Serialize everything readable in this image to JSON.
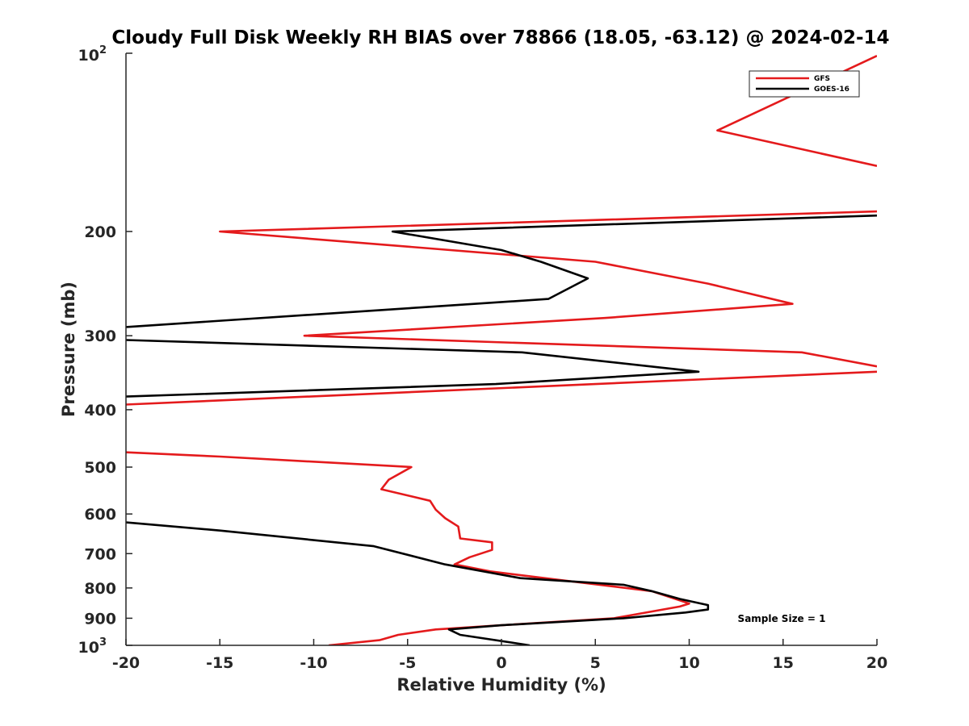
{
  "chart_data": {
    "type": "line",
    "title": "Cloudy Full Disk Weekly RH BIAS over 78866 (18.05, -63.12) @ 2024-02-14",
    "xlabel": "Relative Humidity (%)",
    "ylabel": "Pressure (mb)",
    "xlim": [
      -20,
      20
    ],
    "ylim": [
      100,
      1000
    ],
    "yscale": "log",
    "y_reversed": true,
    "grid": false,
    "x_ticks": [
      -20,
      -15,
      -10,
      -5,
      0,
      5,
      10,
      15,
      20
    ],
    "x_tick_labels": [
      "-20",
      "-15",
      "-10",
      "-5",
      "0",
      "5",
      "10",
      "15",
      "20"
    ],
    "y_ticks": [
      {
        "value": 100,
        "base": "10",
        "exp": "2"
      },
      {
        "value": 200,
        "label": "200"
      },
      {
        "value": 300,
        "label": "300"
      },
      {
        "value": 400,
        "label": "400"
      },
      {
        "value": 500,
        "label": "500"
      },
      {
        "value": 600,
        "label": "600"
      },
      {
        "value": 700,
        "label": "700"
      },
      {
        "value": 800,
        "label": "800"
      },
      {
        "value": 900,
        "label": "900"
      },
      {
        "value": 1000,
        "base": "10",
        "exp": "3"
      }
    ],
    "legend_position": "top-right",
    "annotation": "Sample Size = 1",
    "series": [
      {
        "name": "GFS",
        "color": "#e41a1c",
        "segments": [
          [
            {
              "x": 20.0,
              "p": 101
            },
            {
              "x": 11.5,
              "p": 135
            },
            {
              "x": 20.0,
              "p": 155
            }
          ],
          [
            {
              "x": 20.0,
              "p": 185
            },
            {
              "x": -15.0,
              "p": 200
            },
            {
              "x": 5.0,
              "p": 225
            },
            {
              "x": 11.0,
              "p": 245
            },
            {
              "x": 15.5,
              "p": 265
            },
            {
              "x": 5.5,
              "p": 280
            },
            {
              "x": -10.5,
              "p": 300
            },
            {
              "x": 16.0,
              "p": 320
            },
            {
              "x": 20.0,
              "p": 338
            }
          ],
          [
            {
              "x": 20.0,
              "p": 345
            },
            {
              "x": -20.0,
              "p": 392
            }
          ],
          [
            {
              "x": -20.0,
              "p": 472
            },
            {
              "x": -15.0,
              "p": 480
            },
            {
              "x": -4.8,
              "p": 500
            },
            {
              "x": -6.0,
              "p": 525
            },
            {
              "x": -6.4,
              "p": 545
            },
            {
              "x": -3.8,
              "p": 570
            },
            {
              "x": -3.5,
              "p": 590
            },
            {
              "x": -3.0,
              "p": 610
            },
            {
              "x": -2.3,
              "p": 630
            },
            {
              "x": -2.2,
              "p": 660
            },
            {
              "x": -0.5,
              "p": 670
            },
            {
              "x": -0.5,
              "p": 690
            },
            {
              "x": -1.7,
              "p": 710
            },
            {
              "x": -2.5,
              "p": 730
            },
            {
              "x": -0.6,
              "p": 750
            },
            {
              "x": 3.0,
              "p": 775
            },
            {
              "x": 8.0,
              "p": 810
            },
            {
              "x": 10.0,
              "p": 850
            },
            {
              "x": 9.5,
              "p": 860
            },
            {
              "x": 6.0,
              "p": 900
            },
            {
              "x": 0.0,
              "p": 925
            },
            {
              "x": -3.5,
              "p": 940
            },
            {
              "x": -5.5,
              "p": 960
            },
            {
              "x": -6.5,
              "p": 980
            },
            {
              "x": -9.2,
              "p": 1000
            }
          ]
        ]
      },
      {
        "name": "GOES-16",
        "color": "#000000",
        "segments": [
          [
            {
              "x": 20.0,
              "p": 188
            },
            {
              "x": -5.8,
              "p": 200
            },
            {
              "x": 0.0,
              "p": 215
            },
            {
              "x": 2.1,
              "p": 225
            },
            {
              "x": 4.6,
              "p": 240
            },
            {
              "x": 2.5,
              "p": 260
            },
            {
              "x": -20.0,
              "p": 290
            }
          ],
          [
            {
              "x": -20.0,
              "p": 305
            },
            {
              "x": 1.1,
              "p": 320
            },
            {
              "x": 10.5,
              "p": 345
            },
            {
              "x": -0.3,
              "p": 362
            },
            {
              "x": -20.0,
              "p": 380
            }
          ],
          [
            {
              "x": -20.0,
              "p": 620
            },
            {
              "x": -15.0,
              "p": 640
            },
            {
              "x": -6.8,
              "p": 680
            },
            {
              "x": -3.0,
              "p": 730
            },
            {
              "x": 1.0,
              "p": 770
            },
            {
              "x": 6.5,
              "p": 790
            },
            {
              "x": 8.0,
              "p": 810
            },
            {
              "x": 9.5,
              "p": 835
            },
            {
              "x": 11.0,
              "p": 855
            },
            {
              "x": 11.0,
              "p": 870
            },
            {
              "x": 9.8,
              "p": 880
            },
            {
              "x": 6.5,
              "p": 900
            },
            {
              "x": 0.0,
              "p": 925
            },
            {
              "x": -2.8,
              "p": 940
            },
            {
              "x": -2.2,
              "p": 960
            },
            {
              "x": 1.5,
              "p": 1000
            }
          ]
        ]
      }
    ]
  }
}
